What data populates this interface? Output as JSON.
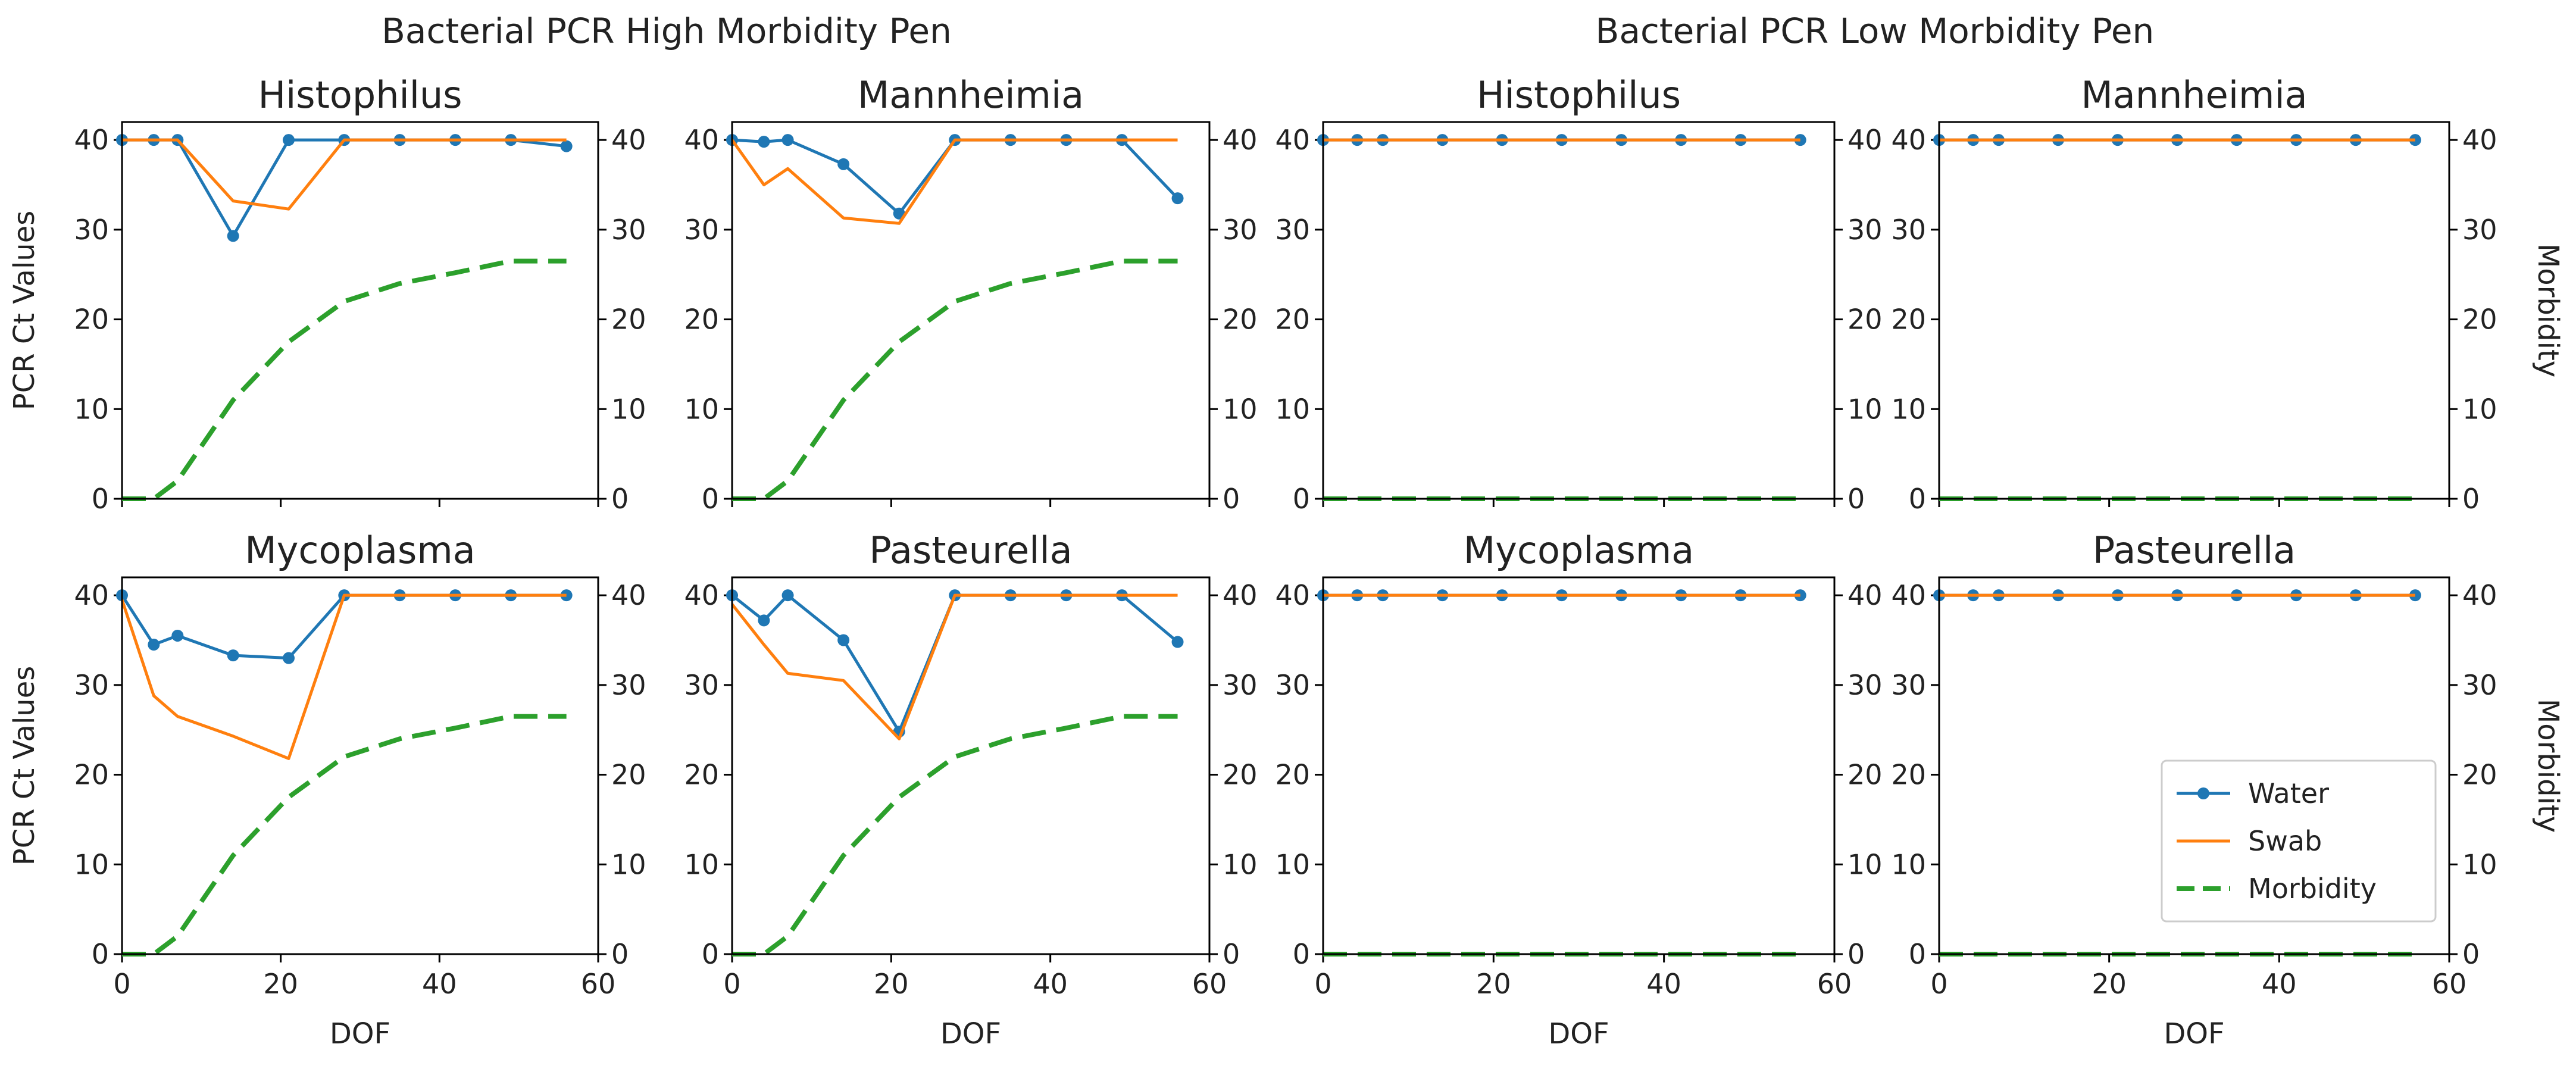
{
  "group_titles": {
    "high": "Bacterial PCR High Morbidity Pen",
    "low": "Bacterial PCR Low Morbidity Pen"
  },
  "axis_labels": {
    "x": "DOF",
    "y_left": "PCR Ct Values",
    "y_right": "Morbidity"
  },
  "legend": {
    "placement": "lower-right of last panel",
    "entries": [
      "Water",
      "Swab",
      "Morbidity"
    ]
  },
  "colors": {
    "water": "#1f77b4",
    "swab": "#ff7f0e",
    "morbidity": "#2ca02c"
  },
  "chart_data": [
    {
      "id": "high-histophilus",
      "type": "line",
      "title": "Histophilus",
      "group": "high",
      "xlim": [
        0,
        60
      ],
      "ylim_left": [
        0,
        42
      ],
      "ylim_right": [
        0,
        42
      ],
      "xticks": [
        0,
        20,
        40,
        60
      ],
      "yticks": [
        0,
        10,
        20,
        30,
        40
      ],
      "series": [
        {
          "name": "Water",
          "x": [
            0,
            4,
            7,
            14,
            21,
            28,
            35,
            42,
            49,
            56
          ],
          "y": [
            40,
            40,
            40,
            29.3,
            40,
            40,
            40,
            40,
            40,
            39.3
          ]
        },
        {
          "name": "Swab",
          "x": [
            0,
            7,
            14,
            21,
            28,
            35,
            42,
            49,
            56
          ],
          "y": [
            40,
            40,
            33.2,
            32.3,
            40,
            40,
            40,
            40,
            40
          ]
        },
        {
          "name": "Morbidity",
          "x": [
            0,
            4,
            7,
            14,
            21,
            28,
            35,
            42,
            49,
            56
          ],
          "y": [
            0,
            0,
            2,
            11,
            17.5,
            22,
            24,
            25.2,
            26.5,
            26.5
          ]
        }
      ]
    },
    {
      "id": "high-mannheimia",
      "type": "line",
      "title": "Mannheimia",
      "group": "high",
      "xlim": [
        0,
        60
      ],
      "ylim_left": [
        0,
        42
      ],
      "ylim_right": [
        0,
        42
      ],
      "xticks": [
        0,
        20,
        40,
        60
      ],
      "yticks": [
        0,
        10,
        20,
        30,
        40
      ],
      "series": [
        {
          "name": "Water",
          "x": [
            0,
            4,
            7,
            14,
            21,
            28,
            35,
            42,
            49,
            56
          ],
          "y": [
            40,
            39.8,
            40,
            37.3,
            31.8,
            40,
            40,
            40,
            40,
            33.5
          ]
        },
        {
          "name": "Swab",
          "x": [
            0,
            4,
            7,
            14,
            21,
            28,
            35,
            42,
            49,
            56
          ],
          "y": [
            40,
            35,
            36.8,
            31.3,
            30.7,
            40,
            40,
            40,
            40,
            40
          ]
        },
        {
          "name": "Morbidity",
          "x": [
            0,
            4,
            7,
            14,
            21,
            28,
            35,
            42,
            49,
            56
          ],
          "y": [
            0,
            0,
            2,
            11,
            17.5,
            22,
            24,
            25.2,
            26.5,
            26.5
          ]
        }
      ]
    },
    {
      "id": "low-histophilus",
      "type": "line",
      "title": "Histophilus",
      "group": "low",
      "xlim": [
        0,
        60
      ],
      "ylim_left": [
        0,
        42
      ],
      "ylim_right": [
        0,
        42
      ],
      "xticks": [
        0,
        20,
        40,
        60
      ],
      "yticks": [
        0,
        10,
        20,
        30,
        40
      ],
      "series": [
        {
          "name": "Water",
          "x": [
            0,
            4,
            7,
            14,
            21,
            28,
            35,
            42,
            49,
            56
          ],
          "y": [
            40,
            40,
            40,
            40,
            40,
            40,
            40,
            40,
            40,
            40
          ]
        },
        {
          "name": "Swab",
          "x": [
            0,
            56
          ],
          "y": [
            40,
            40
          ]
        },
        {
          "name": "Morbidity",
          "x": [
            0,
            56
          ],
          "y": [
            0,
            0
          ]
        }
      ]
    },
    {
      "id": "low-mannheimia",
      "type": "line",
      "title": "Mannheimia",
      "group": "low",
      "xlim": [
        0,
        60
      ],
      "ylim_left": [
        0,
        42
      ],
      "ylim_right": [
        0,
        42
      ],
      "xticks": [
        0,
        20,
        40,
        60
      ],
      "yticks": [
        0,
        10,
        20,
        30,
        40
      ],
      "series": [
        {
          "name": "Water",
          "x": [
            0,
            4,
            7,
            14,
            21,
            28,
            35,
            42,
            49,
            56
          ],
          "y": [
            40,
            40,
            40,
            40,
            40,
            40,
            40,
            40,
            40,
            40
          ]
        },
        {
          "name": "Swab",
          "x": [
            0,
            56
          ],
          "y": [
            40,
            40
          ]
        },
        {
          "name": "Morbidity",
          "x": [
            0,
            56
          ],
          "y": [
            0,
            0
          ]
        }
      ]
    },
    {
      "id": "high-mycoplasma",
      "type": "line",
      "title": "Mycoplasma",
      "group": "high",
      "xlim": [
        0,
        60
      ],
      "ylim_left": [
        0,
        42
      ],
      "ylim_right": [
        0,
        42
      ],
      "xticks": [
        0,
        20,
        40,
        60
      ],
      "yticks": [
        0,
        10,
        20,
        30,
        40
      ],
      "series": [
        {
          "name": "Water",
          "x": [
            0,
            4,
            7,
            14,
            21,
            28,
            35,
            42,
            49,
            56
          ],
          "y": [
            40,
            34.5,
            35.5,
            33.3,
            33,
            40,
            40,
            40,
            40,
            40
          ]
        },
        {
          "name": "Swab",
          "x": [
            0,
            4,
            7,
            14,
            21,
            28,
            35,
            42,
            49,
            56
          ],
          "y": [
            39.5,
            28.8,
            26.5,
            24.3,
            21.8,
            40,
            40,
            40,
            40,
            40
          ]
        },
        {
          "name": "Morbidity",
          "x": [
            0,
            4,
            7,
            14,
            21,
            28,
            35,
            42,
            49,
            56
          ],
          "y": [
            0,
            0,
            2,
            11,
            17.5,
            22,
            24,
            25.2,
            26.5,
            26.5
          ]
        }
      ]
    },
    {
      "id": "high-pasteurella",
      "type": "line",
      "title": "Pasteurella",
      "group": "high",
      "xlim": [
        0,
        60
      ],
      "ylim_left": [
        0,
        42
      ],
      "ylim_right": [
        0,
        42
      ],
      "xticks": [
        0,
        20,
        40,
        60
      ],
      "yticks": [
        0,
        10,
        20,
        30,
        40
      ],
      "series": [
        {
          "name": "Water",
          "x": [
            0,
            4,
            7,
            14,
            21,
            28,
            35,
            42,
            49,
            56
          ],
          "y": [
            40,
            37.2,
            40,
            35,
            24.8,
            40,
            40,
            40,
            40,
            34.8
          ]
        },
        {
          "name": "Swab",
          "x": [
            0,
            4,
            7,
            14,
            21,
            28,
            35,
            42,
            49,
            56
          ],
          "y": [
            39,
            34.5,
            31.3,
            30.5,
            24,
            40,
            40,
            40,
            40,
            40
          ]
        },
        {
          "name": "Morbidity",
          "x": [
            0,
            4,
            7,
            14,
            21,
            28,
            35,
            42,
            49,
            56
          ],
          "y": [
            0,
            0,
            2,
            11,
            17.5,
            22,
            24,
            25.2,
            26.5,
            26.5
          ]
        }
      ]
    },
    {
      "id": "low-mycoplasma",
      "type": "line",
      "title": "Mycoplasma",
      "group": "low",
      "xlim": [
        0,
        60
      ],
      "ylim_left": [
        0,
        42
      ],
      "ylim_right": [
        0,
        42
      ],
      "xticks": [
        0,
        20,
        40,
        60
      ],
      "yticks": [
        0,
        10,
        20,
        30,
        40
      ],
      "series": [
        {
          "name": "Water",
          "x": [
            0,
            4,
            7,
            14,
            21,
            28,
            35,
            42,
            49,
            56
          ],
          "y": [
            40,
            40,
            40,
            40,
            40,
            40,
            40,
            40,
            40,
            40
          ]
        },
        {
          "name": "Swab",
          "x": [
            0,
            56
          ],
          "y": [
            40,
            40
          ]
        },
        {
          "name": "Morbidity",
          "x": [
            0,
            56
          ],
          "y": [
            0,
            0
          ]
        }
      ]
    },
    {
      "id": "low-pasteurella",
      "type": "line",
      "title": "Pasteurella",
      "group": "low",
      "xlim": [
        0,
        60
      ],
      "ylim_left": [
        0,
        42
      ],
      "ylim_right": [
        0,
        42
      ],
      "xticks": [
        0,
        20,
        40,
        60
      ],
      "yticks": [
        0,
        10,
        20,
        30,
        40
      ],
      "series": [
        {
          "name": "Water",
          "x": [
            0,
            4,
            7,
            14,
            21,
            28,
            35,
            42,
            49,
            56
          ],
          "y": [
            40,
            40,
            40,
            40,
            40,
            40,
            40,
            40,
            40,
            40
          ]
        },
        {
          "name": "Swab",
          "x": [
            0,
            56
          ],
          "y": [
            40,
            40
          ]
        },
        {
          "name": "Morbidity",
          "x": [
            0,
            56
          ],
          "y": [
            0,
            0
          ]
        }
      ]
    }
  ]
}
